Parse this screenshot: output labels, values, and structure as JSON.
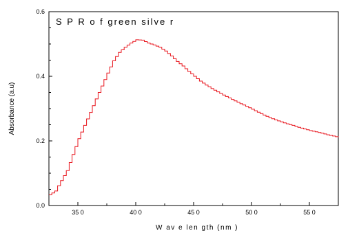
{
  "chart_data": {
    "type": "line",
    "title": "S P R  o f  green  silve r",
    "xlabel": "W av e len gth  (nm )",
    "ylabel": "Absorbance (a.u)",
    "xlim": [
      325,
      575
    ],
    "ylim": [
      0.0,
      0.6
    ],
    "x_ticks": [
      350,
      400,
      450,
      500,
      550
    ],
    "x_tick_labels": [
      "35 0",
      "40 0",
      "45 0",
      "50 0",
      "55 0"
    ],
    "y_ticks": [
      0.0,
      0.2,
      0.4,
      0.6
    ],
    "y_tick_labels": [
      "0.0",
      "0.2",
      "0.4",
      "0.6"
    ],
    "grid": false,
    "series": [
      {
        "color": "#e8141c",
        "x": [
          325,
          330,
          335,
          340,
          345,
          350,
          355,
          360,
          365,
          370,
          375,
          380,
          385,
          390,
          395,
          400,
          405,
          410,
          415,
          420,
          425,
          430,
          435,
          440,
          445,
          450,
          455,
          460,
          465,
          470,
          475,
          480,
          485,
          490,
          495,
          500,
          505,
          510,
          515,
          520,
          525,
          530,
          535,
          540,
          545,
          550,
          555,
          560,
          565,
          570,
          575
        ],
        "y": [
          0.033,
          0.045,
          0.077,
          0.108,
          0.158,
          0.207,
          0.248,
          0.288,
          0.33,
          0.37,
          0.41,
          0.448,
          0.474,
          0.49,
          0.503,
          0.513,
          0.512,
          0.503,
          0.497,
          0.49,
          0.478,
          0.463,
          0.446,
          0.432,
          0.415,
          0.4,
          0.385,
          0.373,
          0.362,
          0.352,
          0.342,
          0.333,
          0.324,
          0.315,
          0.307,
          0.298,
          0.289,
          0.28,
          0.272,
          0.265,
          0.259,
          0.253,
          0.248,
          0.242,
          0.237,
          0.232,
          0.228,
          0.224,
          0.219,
          0.215,
          0.211
        ]
      }
    ]
  }
}
